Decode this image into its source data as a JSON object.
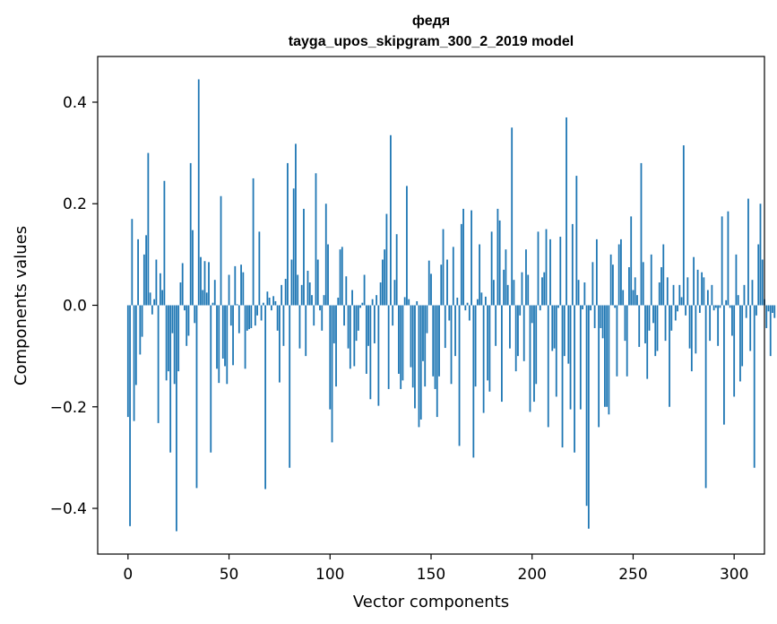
{
  "chart_data": {
    "type": "bar",
    "title": "федя",
    "subtitle": "tayga_upos_skipgram_300_2_2019 model",
    "xlabel": "Vector components",
    "ylabel": "Components values",
    "xlim": [
      -15,
      315
    ],
    "ylim": [
      -0.49,
      0.49
    ],
    "xticks": [
      0,
      50,
      100,
      150,
      200,
      250,
      300
    ],
    "yticks": [
      -0.4,
      -0.2,
      0.0,
      0.2,
      0.4
    ],
    "ytick_labels": [
      "−0.4",
      "−0.2",
      "0.0",
      "0.2",
      "0.4"
    ],
    "color": "#1f77b4",
    "values": [
      -0.22,
      -0.435,
      0.17,
      -0.228,
      -0.157,
      0.13,
      -0.097,
      -0.062,
      0.1,
      0.138,
      0.3,
      0.025,
      -0.018,
      0.012,
      0.09,
      -0.232,
      0.063,
      0.03,
      0.245,
      -0.148,
      -0.13,
      -0.29,
      -0.055,
      -0.155,
      -0.445,
      -0.13,
      0.045,
      0.083,
      -0.01,
      -0.08,
      -0.06,
      0.28,
      0.148,
      -0.035,
      -0.36,
      0.445,
      0.095,
      0.03,
      0.087,
      0.025,
      0.085,
      -0.29,
      0.005,
      0.05,
      -0.125,
      -0.153,
      0.215,
      -0.105,
      -0.12,
      -0.155,
      0.06,
      -0.04,
      -0.118,
      0.077,
      0.002,
      -0.055,
      0.08,
      0.065,
      -0.125,
      -0.05,
      -0.047,
      -0.045,
      0.25,
      -0.04,
      -0.02,
      0.145,
      -0.03,
      0.005,
      -0.362,
      0.027,
      0.015,
      -0.01,
      0.018,
      0.008,
      -0.05,
      -0.152,
      0.04,
      -0.08,
      0.052,
      0.28,
      -0.32,
      0.09,
      0.23,
      0.318,
      0.06,
      -0.085,
      0.04,
      0.19,
      -0.1,
      0.068,
      0.045,
      0.02,
      -0.04,
      0.26,
      0.09,
      -0.01,
      -0.05,
      0.02,
      0.2,
      0.12,
      -0.205,
      -0.27,
      -0.075,
      -0.16,
      0.015,
      0.11,
      0.115,
      -0.04,
      0.057,
      -0.085,
      -0.125,
      0.03,
      -0.12,
      -0.07,
      -0.05,
      -0.005,
      0.005,
      0.06,
      -0.135,
      -0.08,
      -0.185,
      0.012,
      -0.075,
      0.02,
      -0.198,
      0.045,
      0.09,
      0.11,
      0.18,
      -0.165,
      0.335,
      -0.04,
      0.05,
      0.14,
      -0.135,
      -0.165,
      -0.148,
      0.016,
      0.235,
      0.012,
      -0.122,
      -0.162,
      -0.203,
      0.008,
      -0.24,
      -0.225,
      -0.11,
      -0.16,
      -0.055,
      0.088,
      0.062,
      -0.14,
      -0.165,
      -0.22,
      -0.14,
      0.08,
      0.15,
      -0.084,
      0.09,
      -0.03,
      -0.155,
      0.115,
      -0.1,
      0.015,
      -0.277,
      0.16,
      0.19,
      -0.01,
      0.005,
      -0.03,
      0.187,
      -0.3,
      -0.16,
      0.012,
      0.12,
      0.025,
      -0.212,
      0.017,
      -0.148,
      -0.17,
      0.145,
      0.05,
      -0.08,
      0.19,
      0.167,
      -0.19,
      0.07,
      0.11,
      0.04,
      -0.085,
      0.35,
      0.05,
      -0.13,
      -0.1,
      -0.02,
      0.065,
      -0.11,
      0.11,
      0.06,
      -0.21,
      -0.035,
      -0.19,
      -0.155,
      0.145,
      -0.01,
      0.055,
      0.065,
      0.15,
      -0.24,
      0.13,
      -0.09,
      -0.085,
      -0.18,
      -0.005,
      0.135,
      -0.28,
      -0.1,
      0.37,
      -0.115,
      -0.205,
      0.16,
      -0.29,
      0.255,
      0.05,
      -0.205,
      -0.008,
      0.045,
      -0.395,
      -0.44,
      -0.01,
      0.085,
      -0.045,
      0.13,
      -0.24,
      -0.045,
      -0.065,
      -0.2,
      -0.2,
      -0.215,
      0.1,
      0.08,
      -0.005,
      -0.14,
      0.12,
      0.13,
      0.03,
      -0.07,
      -0.14,
      0.075,
      0.175,
      0.03,
      0.055,
      0.02,
      -0.082,
      0.28,
      0.085,
      -0.075,
      -0.145,
      -0.05,
      0.1,
      -0.035,
      -0.1,
      -0.09,
      0.045,
      0.075,
      0.12,
      -0.07,
      0.055,
      -0.2,
      -0.05,
      0.04,
      -0.03,
      -0.012,
      0.04,
      0.016,
      0.315,
      -0.02,
      0.055,
      -0.085,
      -0.13,
      0.095,
      -0.095,
      0.07,
      -0.015,
      0.065,
      0.055,
      -0.36,
      0.03,
      -0.07,
      0.04,
      -0.01,
      -0.005,
      -0.08,
      -0.005,
      0.175,
      -0.235,
      0.01,
      0.185,
      -0.005,
      -0.06,
      -0.18,
      0.1,
      0.02,
      -0.15,
      -0.12,
      0.04,
      -0.025,
      0.21,
      -0.09,
      0.05,
      -0.32,
      -0.02,
      0.12,
      0.2,
      0.09,
      0.012,
      -0.045,
      -0.012,
      -0.1,
      -0.015,
      -0.025
    ]
  }
}
